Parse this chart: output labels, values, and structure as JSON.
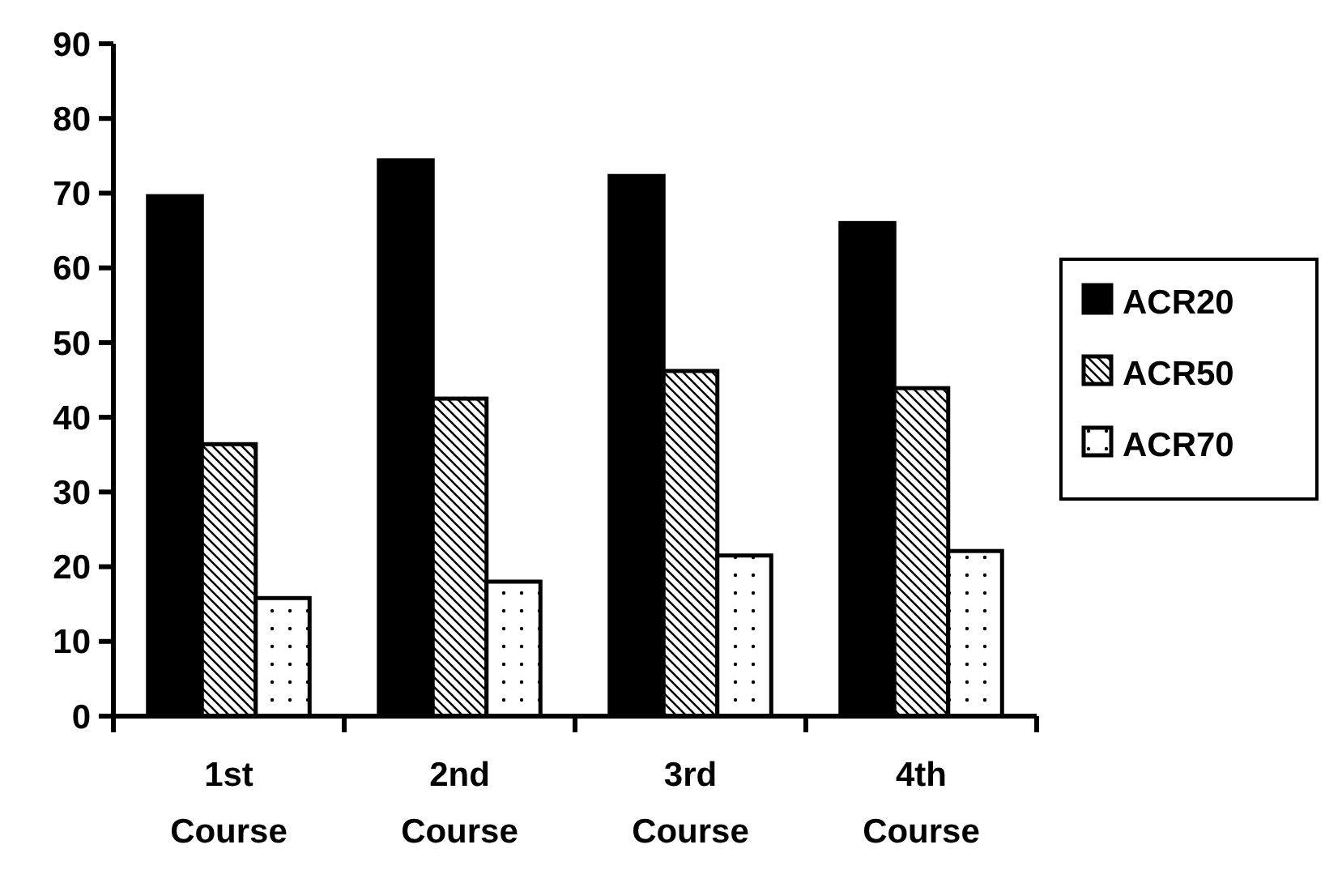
{
  "chart_data": {
    "type": "bar",
    "categories": [
      "1st Course",
      "2nd Course",
      "3rd Course",
      "4th Course"
    ],
    "series": [
      {
        "name": "ACR20",
        "color": "#000000",
        "values": [
          69.6,
          74.4,
          72.3,
          66.0
        ]
      },
      {
        "name": "ACR50",
        "color": "#000000",
        "values": [
          36.4,
          42.5,
          46.2,
          43.9
        ]
      },
      {
        "name": "ACR70",
        "color": "#000000",
        "values": [
          15.8,
          18.0,
          21.5,
          22.1
        ]
      }
    ],
    "ylim": [
      0,
      90
    ],
    "yticks": [
      0,
      10,
      20,
      30,
      40,
      50,
      60,
      70,
      80,
      90
    ],
    "grid": false,
    "legend": "right"
  }
}
